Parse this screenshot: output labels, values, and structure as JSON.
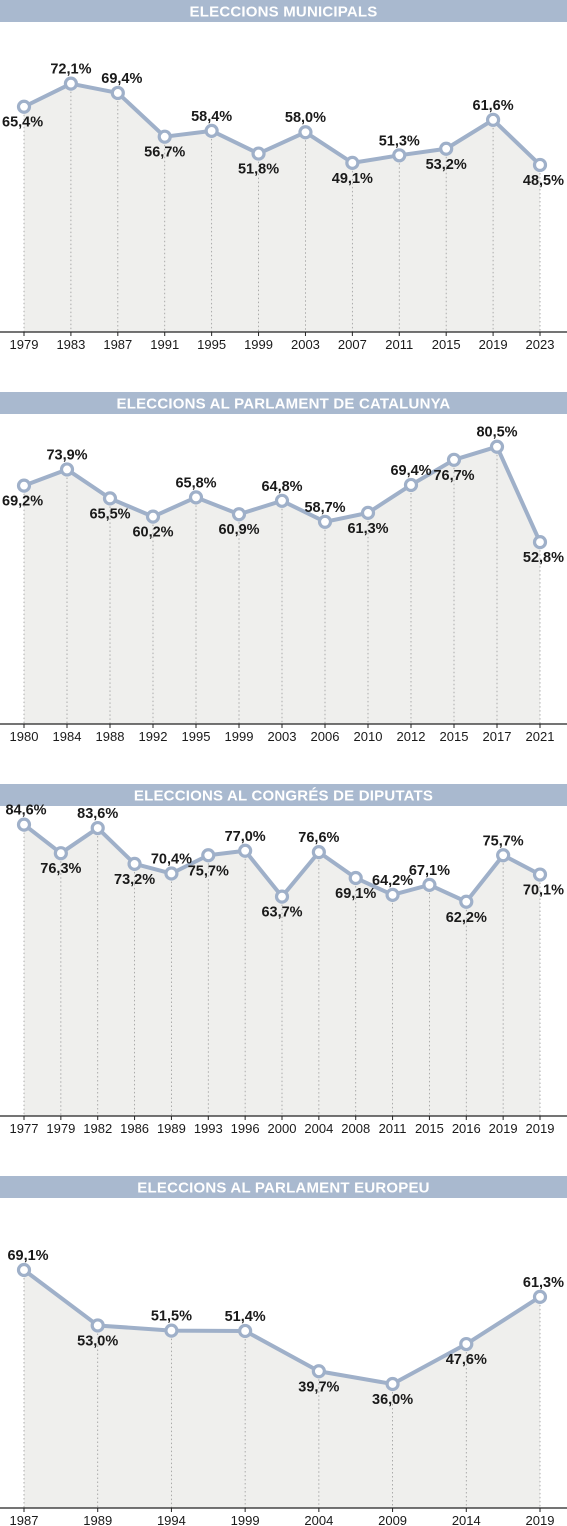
{
  "chart_data": [
    {
      "type": "line",
      "title": "ELECCIONS MUNICIPALS",
      "categories": [
        "1979",
        "1983",
        "1987",
        "1991",
        "1995",
        "1999",
        "2003",
        "2007",
        "2011",
        "2015",
        "2019",
        "2023"
      ],
      "values": [
        65.4,
        72.1,
        69.4,
        56.7,
        58.4,
        51.8,
        58.0,
        49.1,
        51.3,
        53.2,
        61.6,
        48.5
      ],
      "labels": [
        "65,4%",
        "72,1%",
        "69,4%",
        "56,7%",
        "58,4%",
        "51,8%",
        "58,0%",
        "49,1%",
        "51,3%",
        "53,2%",
        "61,6%",
        "48,5%"
      ],
      "ylim": [
        0,
        90
      ]
    },
    {
      "type": "line",
      "title": "ELECCIONS AL PARLAMENT DE CATALUNYA",
      "categories": [
        "1980",
        "1984",
        "1988",
        "1992",
        "1995",
        "1999",
        "2003",
        "2006",
        "2010",
        "2012",
        "2015",
        "2017",
        "2021"
      ],
      "values": [
        69.2,
        73.9,
        65.5,
        60.2,
        65.8,
        60.9,
        64.8,
        58.7,
        61.3,
        69.4,
        76.7,
        80.5,
        52.8
      ],
      "labels": [
        "69,2%",
        "73,9%",
        "65,5%",
        "60,2%",
        "65,8%",
        "60,9%",
        "64,8%",
        "58,7%",
        "61,3%",
        "69,4%",
        "76,7%",
        "80,5%",
        "52,8%"
      ],
      "ylim": [
        0,
        90
      ]
    },
    {
      "type": "line",
      "title": "ELECCIONS AL CONGRÉS DE DIPUTATS",
      "categories": [
        "1977",
        "1979",
        "1982",
        "1986",
        "1989",
        "1993",
        "1996",
        "2000",
        "2004",
        "2008",
        "2011",
        "2015",
        "2016",
        "2019",
        "2019"
      ],
      "values": [
        84.6,
        76.3,
        83.6,
        73.2,
        70.4,
        75.7,
        77.0,
        63.7,
        76.6,
        69.1,
        64.2,
        67.1,
        62.2,
        75.7,
        70.1
      ],
      "labels": [
        "84,6%",
        "76,3%",
        "83,6%",
        "73,2%",
        "70,4%",
        "75,7%",
        "77,0%",
        "63,7%",
        "76,6%",
        "69,1%",
        "64,2%",
        "67,1%",
        "62,2%",
        "75,7%",
        "70,1%"
      ],
      "ylim": [
        0,
        90
      ]
    },
    {
      "type": "line",
      "title": "ELECCIONS AL PARLAMENT EUROPEU",
      "categories": [
        "1987",
        "1989",
        "1994",
        "1999",
        "2004",
        "2009",
        "2014",
        "2019"
      ],
      "values": [
        69.1,
        53.0,
        51.5,
        51.4,
        39.7,
        36.0,
        47.6,
        61.3
      ],
      "labels": [
        "69,1%",
        "53,0%",
        "51,5%",
        "51,4%",
        "39,7%",
        "36,0%",
        "47,6%",
        "61,3%"
      ],
      "ylim": [
        0,
        90
      ]
    }
  ],
  "colors": {
    "title_bar": "#a9b9cf",
    "line": "#9fb0c9",
    "area": "#efefed",
    "text": "#1a1a1a"
  }
}
